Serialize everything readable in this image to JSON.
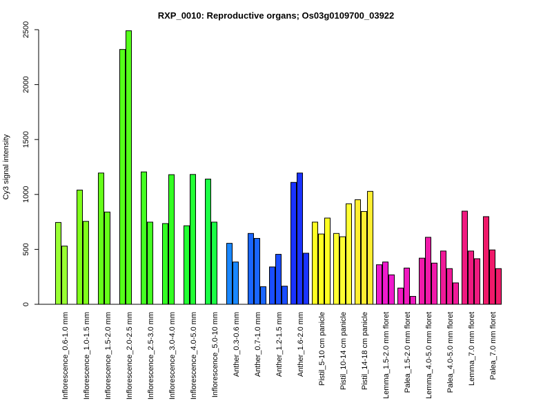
{
  "chart_data": {
    "type": "bar",
    "title": "RXP_0010: Reproductive organs; Os03g0109700_03922",
    "ylabel": "Cy3 signal intensity",
    "xlabel": "",
    "ylim": [
      0,
      2500
    ],
    "yticks": [
      0,
      500,
      1000,
      1500,
      2000,
      2500
    ],
    "grid": false,
    "legend": "none",
    "categories": [
      {
        "label": "Inflorescence_0.6-1.0 mm",
        "color": "#99ff33",
        "values": [
          745,
          530
        ]
      },
      {
        "label": "Inflorescence_1.0-1.5 mm",
        "color": "#80ff1a",
        "values": [
          1040,
          755
        ]
      },
      {
        "label": "Inflorescence_1.5-2.0 mm",
        "color": "#66ff1a",
        "values": [
          1195,
          840
        ]
      },
      {
        "label": "Inflorescence_2.0-2.5 mm",
        "color": "#55ff1a",
        "values": [
          2320,
          2490
        ]
      },
      {
        "label": "Inflorescence_2.5-3.0 mm",
        "color": "#44ff22",
        "values": [
          1205,
          748
        ]
      },
      {
        "label": "Inflorescence_3.0-4.0 mm",
        "color": "#33ff22",
        "values": [
          735,
          1180
        ]
      },
      {
        "label": "Inflorescence_4.0-5.0 mm",
        "color": "#22ff33",
        "values": [
          715,
          1182
        ]
      },
      {
        "label": "Inflorescence_5.0-10 mm",
        "color": "#1aff44",
        "values": [
          1140,
          748
        ]
      },
      {
        "label": "Anther_0.3-0.6 mm",
        "color": "#1a88ff",
        "values": [
          555,
          385
        ]
      },
      {
        "label": "Anther_0.7-1.0 mm",
        "color": "#1a66ff",
        "values": [
          645,
          600,
          160
        ]
      },
      {
        "label": "Anther_1.2-1.5 mm",
        "color": "#1a4dff",
        "values": [
          340,
          455,
          165
        ]
      },
      {
        "label": "Anther_1.6-2.0 mm",
        "color": "#1a33ff",
        "values": [
          1110,
          1195,
          465
        ]
      },
      {
        "label": "Pistil_5-10 cm panicle",
        "color": "#ffff22",
        "values": [
          748,
          640,
          785
        ]
      },
      {
        "label": "Pistil_10-14 cm panicle",
        "color": "#ffff33",
        "values": [
          645,
          615,
          915
        ]
      },
      {
        "label": "Pistil_14-18 cm panicle",
        "color": "#ffee33",
        "values": [
          952,
          845,
          1028
        ]
      },
      {
        "label": "Lemma_1.5-2.0 mm floret",
        "color": "#ee1acc",
        "values": [
          360,
          385,
          268
        ]
      },
      {
        "label": "Palea_1.5-2.0 mm floret",
        "color": "#f01ac0",
        "values": [
          148,
          330,
          72
        ]
      },
      {
        "label": "Lemma_4.0-5.0 mm floret",
        "color": "#f01aaa",
        "values": [
          420,
          610,
          375
        ]
      },
      {
        "label": "Palea_4.0-5.0 mm floret",
        "color": "#f01a99",
        "values": [
          485,
          325,
          195
        ]
      },
      {
        "label": "Lemma_7.0 mm floret",
        "color": "#f01a80",
        "values": [
          848,
          485,
          415
        ]
      },
      {
        "label": "Palea_7.0 mm floret",
        "color": "#f01a6a",
        "values": [
          798,
          495,
          325
        ]
      }
    ]
  }
}
